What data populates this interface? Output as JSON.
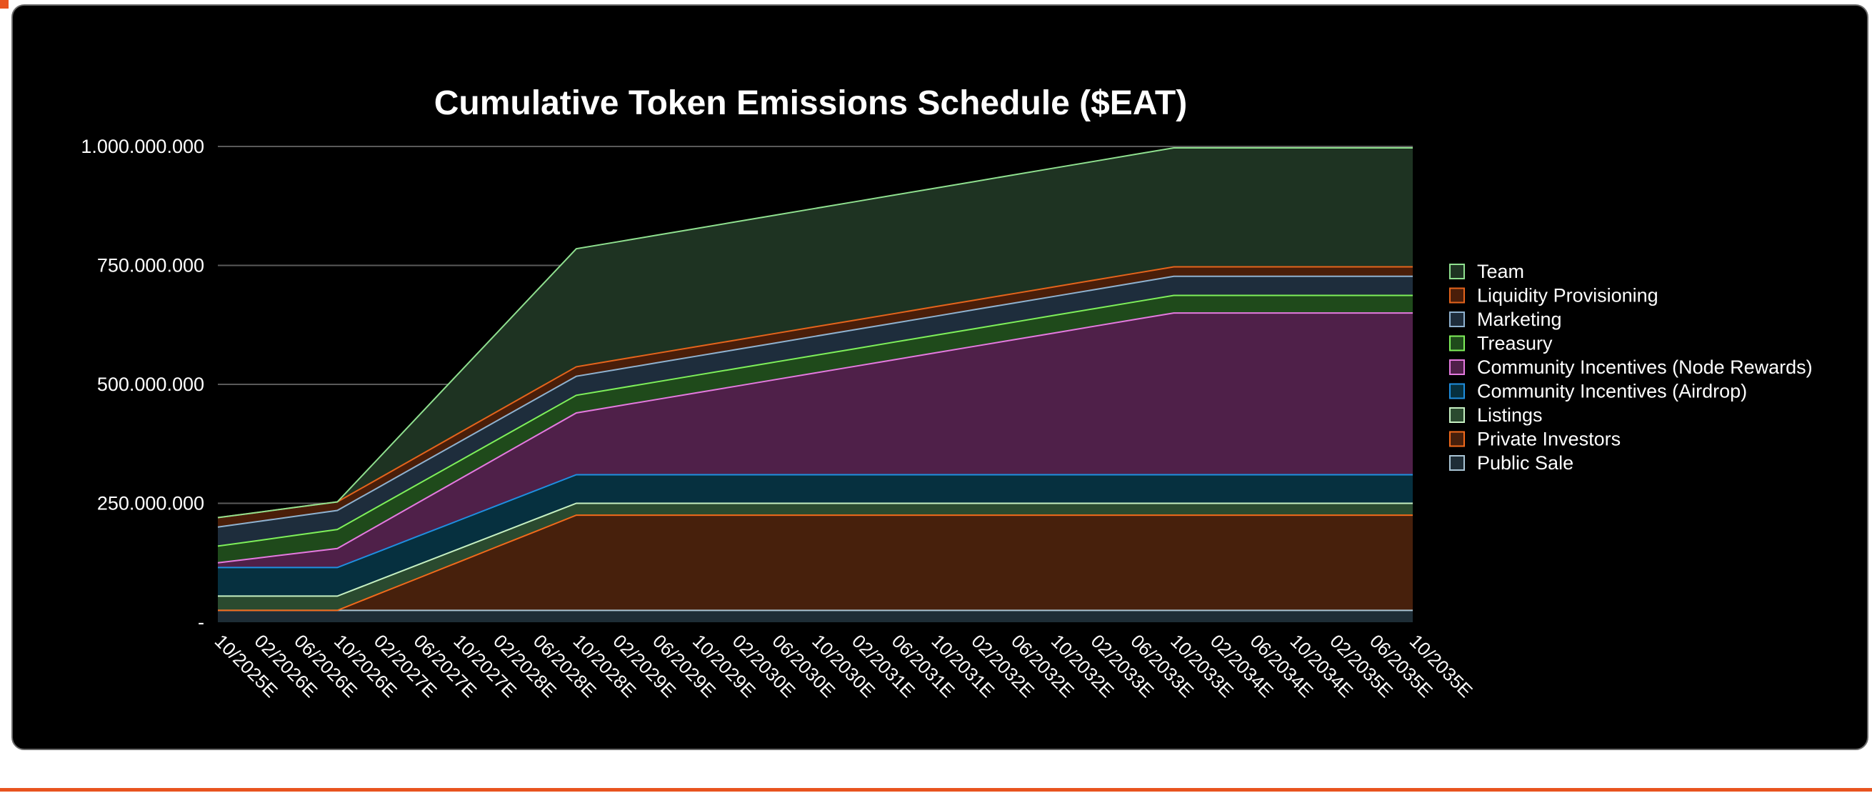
{
  "chart_data": {
    "type": "area",
    "stacked": true,
    "title": "Cumulative Token Emissions Schedule ($EAT)",
    "xlabel": "",
    "ylabel": "",
    "ylim": [
      0,
      1000000000
    ],
    "yticks": [
      {
        "value": 0,
        "label": "-"
      },
      {
        "value": 250000000,
        "label": "250.000.000"
      },
      {
        "value": 500000000,
        "label": "500.000.000"
      },
      {
        "value": 750000000,
        "label": "750.000.000"
      },
      {
        "value": 1000000000,
        "label": "1.000.000.000"
      }
    ],
    "grid": true,
    "legend_position": "right",
    "categories": [
      "10/2025E",
      "02/2026E",
      "06/2026E",
      "10/2026E",
      "02/2027E",
      "06/2027E",
      "10/2027E",
      "02/2028E",
      "06/2028E",
      "10/2028E",
      "02/2029E",
      "06/2029E",
      "10/2029E",
      "02/2030E",
      "06/2030E",
      "10/2030E",
      "02/2031E",
      "06/2031E",
      "10/2031E",
      "02/2032E",
      "06/2032E",
      "10/2032E",
      "02/2033E",
      "06/2033E",
      "10/2033E",
      "02/2034E",
      "06/2034E",
      "10/2034E",
      "02/2035E",
      "06/2035E",
      "10/2035E"
    ],
    "series": [
      {
        "name": "Public Sale",
        "fill": "#1e2d36",
        "stroke": "#a9c4d4",
        "points": [
          [
            0,
            25000000
          ],
          [
            30,
            25000000
          ]
        ]
      },
      {
        "name": "Private Investors",
        "fill": "#47200c",
        "stroke": "#f26a1b",
        "points": [
          [
            0,
            0
          ],
          [
            3,
            0
          ],
          [
            9,
            200000000
          ],
          [
            30,
            200000000
          ]
        ]
      },
      {
        "name": "Listings",
        "fill": "#2a4a2f",
        "stroke": "#c6f0c2",
        "points": [
          [
            0,
            30000000
          ],
          [
            3,
            30000000
          ],
          [
            9,
            25000000
          ],
          [
            30,
            25000000
          ]
        ]
      },
      {
        "name": "Community Incentives (Airdrop)",
        "fill": "#06303f",
        "stroke": "#1f8fe0",
        "points": [
          [
            0,
            60000000
          ],
          [
            3,
            60000000
          ],
          [
            9,
            60000000
          ],
          [
            30,
            60000000
          ]
        ]
      },
      {
        "name": "Community Incentives (Node Rewards)",
        "fill": "#4f2049",
        "stroke": "#e57ae0",
        "points": [
          [
            0,
            10000000
          ],
          [
            3,
            40000000
          ],
          [
            9,
            130000000
          ],
          [
            24,
            340000000
          ],
          [
            30,
            340000000
          ]
        ]
      },
      {
        "name": "Treasury",
        "fill": "#1f4a1b",
        "stroke": "#7ff05a",
        "points": [
          [
            0,
            35000000
          ],
          [
            3,
            40000000
          ],
          [
            9,
            37000000
          ],
          [
            24,
            37000000
          ],
          [
            30,
            37000000
          ]
        ]
      },
      {
        "name": "Marketing",
        "fill": "#1e2d3c",
        "stroke": "#8fb2d0",
        "points": [
          [
            0,
            40000000
          ],
          [
            3,
            40000000
          ],
          [
            9,
            40000000
          ],
          [
            24,
            40000000
          ],
          [
            30,
            40000000
          ]
        ]
      },
      {
        "name": "Liquidity Provisioning",
        "fill": "#4a1e09",
        "stroke": "#e5641c",
        "points": [
          [
            0,
            20000000
          ],
          [
            3,
            18000000
          ],
          [
            9,
            20000000
          ],
          [
            24,
            20000000
          ],
          [
            30,
            20000000
          ]
        ]
      },
      {
        "name": "Team",
        "fill": "#1e3322",
        "stroke": "#8fe08f",
        "points": [
          [
            0,
            0
          ],
          [
            3,
            0
          ],
          [
            9,
            248000000
          ],
          [
            24,
            250000000
          ],
          [
            30,
            250000000
          ]
        ]
      }
    ],
    "legend_order": [
      "Team",
      "Liquidity Provisioning",
      "Marketing",
      "Treasury",
      "Community Incentives (Node Rewards)",
      "Community Incentives (Airdrop)",
      "Listings",
      "Private Investors",
      "Public Sale"
    ]
  },
  "colors": {
    "background": "#000000",
    "frame_border": "#6b6b6b",
    "accent": "#e8541f",
    "gridline": "#5a5a5a",
    "text": "#ffffff"
  }
}
